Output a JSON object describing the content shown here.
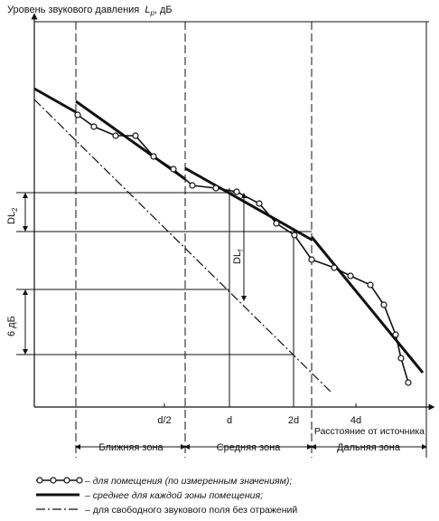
{
  "axis": {
    "y_title": "Уровень звукового давления",
    "y_symbol": "L",
    "y_symbol_sub": "p",
    "y_unit": ", дБ",
    "x_title": "Расстояние от источника",
    "x_ticks": [
      "d/2",
      "d",
      "2d",
      "4d"
    ]
  },
  "zones": [
    "Ближняя зона",
    "Средняя зона",
    "Дальняя зона"
  ],
  "annotations": {
    "dl2": "DL",
    "dl2_sub": "2",
    "dlf": "DL",
    "dlf_sub": "f",
    "db6": "6 дБ"
  },
  "legend": {
    "measured": "– для помещения (по измеренным значениям);",
    "average": "– среднее для каждой зоны помещения;",
    "free_field": "– для свободного звукового поля без отражений"
  },
  "measured_points": [
    [
      86,
      127
    ],
    [
      104,
      140
    ],
    [
      128,
      150
    ],
    [
      150,
      150
    ],
    [
      170,
      173
    ],
    [
      192,
      187
    ],
    [
      213,
      205
    ],
    [
      239,
      208
    ],
    [
      262,
      212
    ],
    [
      287,
      225
    ],
    [
      306,
      247
    ],
    [
      326,
      260
    ],
    [
      345,
      287
    ],
    [
      370,
      296
    ],
    [
      388,
      305
    ],
    [
      410,
      315
    ],
    [
      425,
      337
    ],
    [
      438,
      370
    ],
    [
      444,
      396
    ],
    [
      452,
      423
    ]
  ]
}
